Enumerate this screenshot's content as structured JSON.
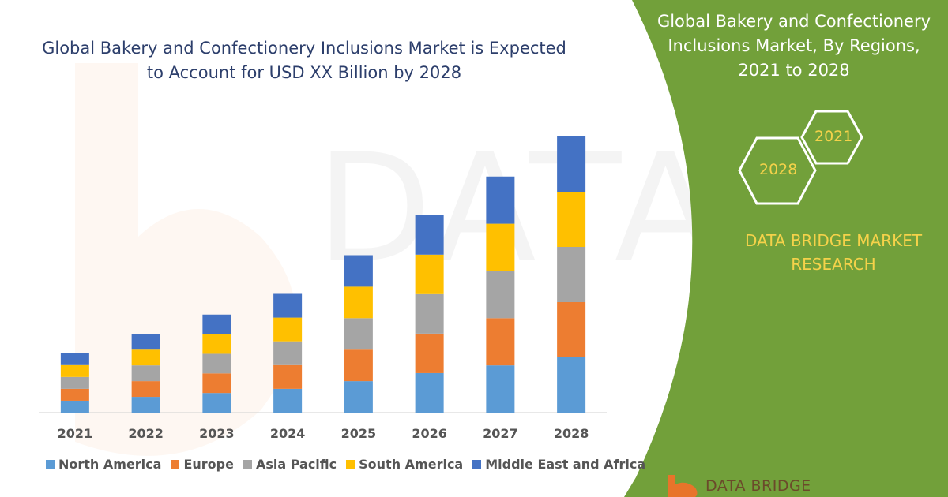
{
  "chart_title_line1": "Global Bakery and Confectionery Inclusions Market is Expected",
  "chart_title_line2": "to Account for USD XX Billion by 2028",
  "panel": {
    "title_line1": "Global Bakery and Confectionery",
    "title_line2": "Inclusions Market, By Regions,",
    "title_line3": "2021 to 2028",
    "hex_large": "2028",
    "hex_small": "2021",
    "brand_line1": "DATA BRIDGE MARKET",
    "brand_line2": "RESEARCH",
    "logo_text": "DATA BRIDGE"
  },
  "colors": {
    "panel_green": "#72a03a",
    "accent_yellow": "#f5d24a"
  },
  "chart_data": {
    "type": "bar",
    "stacked": true,
    "title": "Global Bakery and Confectionery Inclusions Market is Expected to Account for USD XX Billion by 2028",
    "xlabel": "",
    "ylabel": "",
    "ylim": [
      0,
      100
    ],
    "categories": [
      "2021",
      "2022",
      "2023",
      "2024",
      "2025",
      "2026",
      "2027",
      "2028"
    ],
    "series": [
      {
        "name": "North America",
        "color": "#5b9bd5",
        "values": [
          4.3,
          5.7,
          7.1,
          8.6,
          11.4,
          14.3,
          17.1,
          20
        ]
      },
      {
        "name": "Europe",
        "color": "#ed7d31",
        "values": [
          4.3,
          5.7,
          7.1,
          8.6,
          11.4,
          14.3,
          17.1,
          20
        ]
      },
      {
        "name": "Asia Pacific",
        "color": "#a5a5a5",
        "values": [
          4.3,
          5.7,
          7.1,
          8.6,
          11.4,
          14.3,
          17.1,
          20
        ]
      },
      {
        "name": "South America",
        "color": "#ffc000",
        "values": [
          4.3,
          5.7,
          7.1,
          8.6,
          11.4,
          14.3,
          17.1,
          20
        ]
      },
      {
        "name": "Middle East and Africa",
        "color": "#4472c4",
        "values": [
          4.3,
          5.7,
          7.1,
          8.6,
          11.4,
          14.3,
          17.1,
          20
        ]
      }
    ],
    "legend_position": "bottom",
    "grid": false
  }
}
